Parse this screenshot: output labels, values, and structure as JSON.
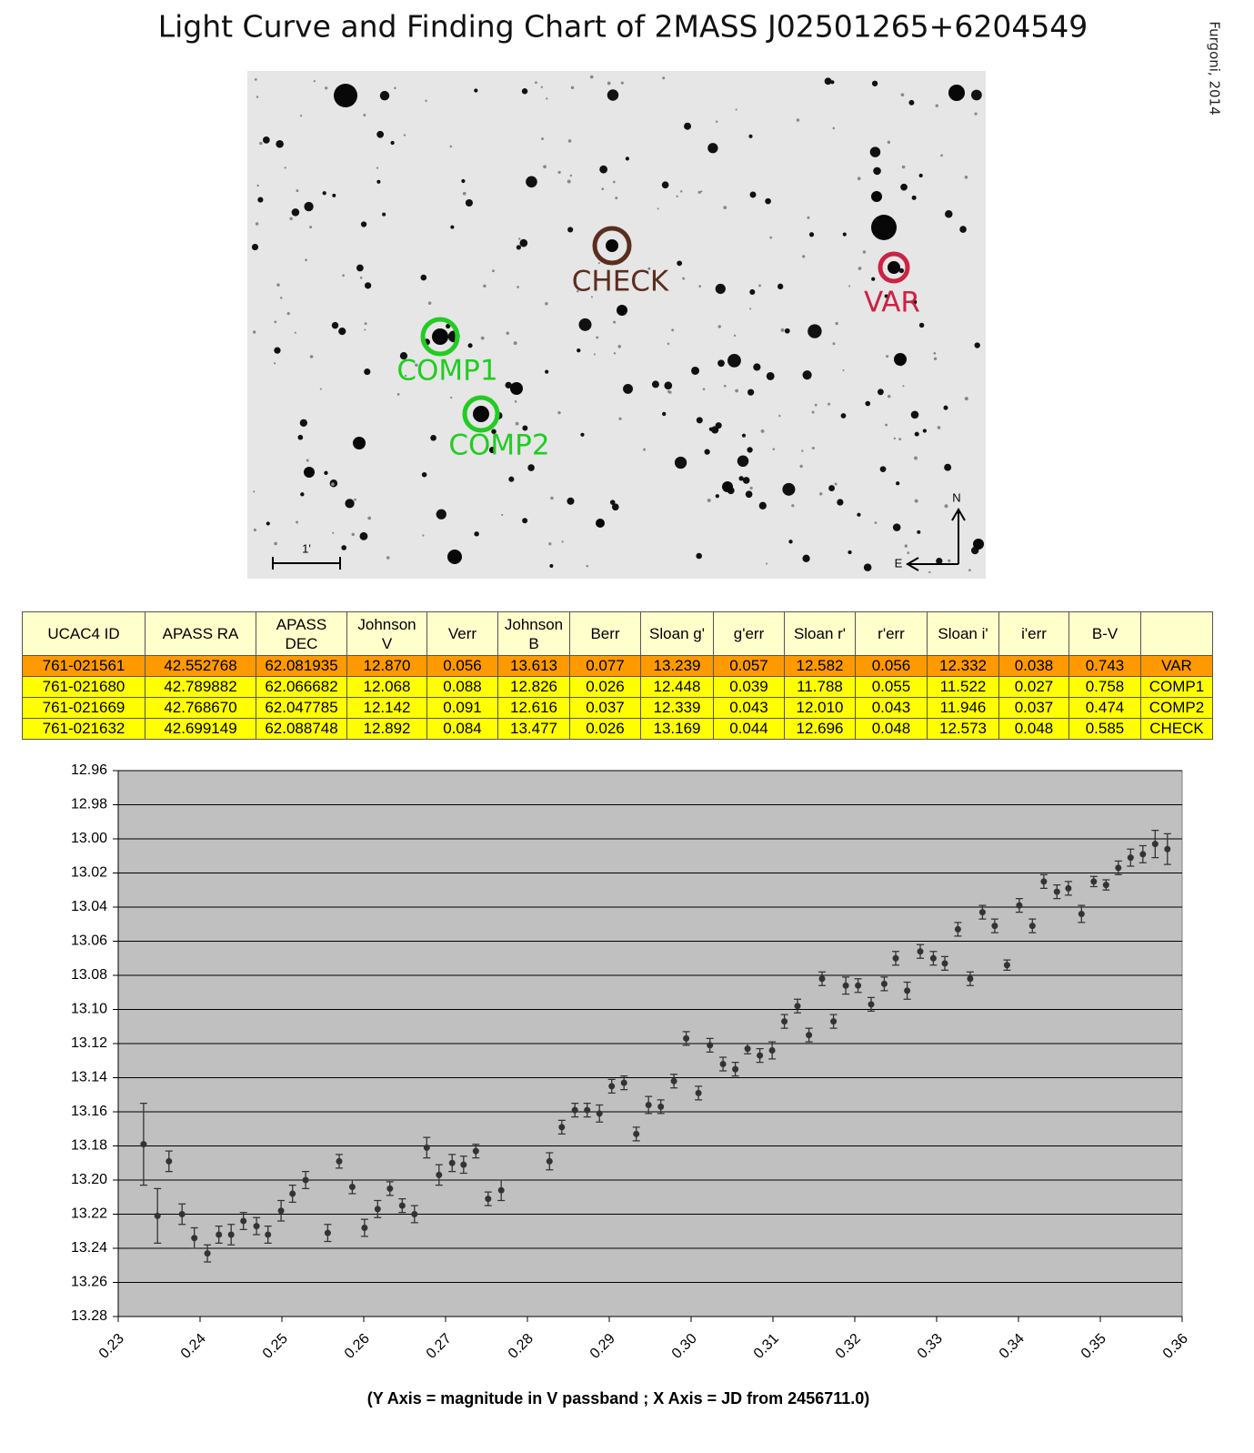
{
  "title": "Light Curve and Finding Chart of  2MASS J02501265+6204549",
  "credit": "Furgoni, 2014",
  "finder": {
    "labels": [
      "CHECK",
      "VAR",
      "COMP1",
      "COMP2"
    ],
    "scale": "1'",
    "north": "N",
    "east": "E"
  },
  "table": {
    "header": [
      "UCAC4 ID",
      "APASS RA",
      "APASS DEC",
      "Johnson V",
      "Verr",
      "Johnson B",
      "Berr",
      "Sloan g'",
      "g'err",
      "Sloan r'",
      "r'err",
      "Sloan i'",
      "i'err",
      "B-V"
    ],
    "rows": [
      [
        "761-021561",
        "42.552768",
        "62.081935",
        "12.870",
        "0.056",
        "13.613",
        "0.077",
        "13.239",
        "0.057",
        "12.582",
        "0.056",
        "12.332",
        "0.038",
        "0.743",
        "VAR"
      ],
      [
        "761-021680",
        "42.789882",
        "62.066682",
        "12.068",
        "0.088",
        "12.826",
        "0.026",
        "12.448",
        "0.039",
        "11.788",
        "0.055",
        "11.522",
        "0.027",
        "0.758",
        "COMP1"
      ],
      [
        "761-021669",
        "42.768670",
        "62.047785",
        "12.142",
        "0.091",
        "12.616",
        "0.037",
        "12.339",
        "0.043",
        "12.010",
        "0.043",
        "11.946",
        "0.037",
        "0.474",
        "COMP2"
      ],
      [
        "761-021632",
        "42.699149",
        "62.088748",
        "12.892",
        "0.084",
        "13.477",
        "0.026",
        "13.169",
        "0.044",
        "12.696",
        "0.048",
        "12.573",
        "0.048",
        "0.585",
        "CHECK"
      ]
    ]
  },
  "chart_data": {
    "type": "scatter",
    "caption": "(Y Axis = magnitude in V passband ; X Axis = JD from 2456711.0)",
    "color": "#333333",
    "grid": true,
    "x": [
      0.2331,
      0.2348,
      0.2362,
      0.2378,
      0.2393,
      0.2409,
      0.2423,
      0.2438,
      0.2453,
      0.2469,
      0.2483,
      0.2499,
      0.2513,
      0.2529,
      0.2556,
      0.257,
      0.2586,
      0.2601,
      0.2617,
      0.2632,
      0.2647,
      0.2662,
      0.2677,
      0.2692,
      0.2708,
      0.2722,
      0.2737,
      0.2752,
      0.2768,
      0.2827,
      0.2842,
      0.2858,
      0.2873,
      0.2888,
      0.2903,
      0.2918,
      0.2933,
      0.2948,
      0.2963,
      0.2979,
      0.2994,
      0.3009,
      0.3023,
      0.3039,
      0.3054,
      0.3069,
      0.3084,
      0.3099,
      0.3114,
      0.313,
      0.3144,
      0.316,
      0.3174,
      0.3189,
      0.3204,
      0.322,
      0.3236,
      0.325,
      0.3264,
      0.328,
      0.3296,
      0.331,
      0.3326,
      0.3341,
      0.3356,
      0.3371,
      0.3386,
      0.3401,
      0.3417,
      0.3431,
      0.3447,
      0.3461,
      0.3477,
      0.3492,
      0.3507,
      0.3522,
      0.3537,
      0.3552,
      0.3567,
      0.3582
    ],
    "values": [
      13.179,
      13.221,
      13.189,
      13.22,
      13.234,
      13.243,
      13.232,
      13.232,
      13.224,
      13.227,
      13.232,
      13.218,
      13.208,
      13.2,
      13.231,
      13.189,
      13.204,
      13.228,
      13.217,
      13.205,
      13.215,
      13.22,
      13.181,
      13.197,
      13.19,
      13.191,
      13.183,
      13.211,
      13.206,
      13.189,
      13.169,
      13.159,
      13.159,
      13.161,
      13.145,
      13.143,
      13.173,
      13.156,
      13.157,
      13.142,
      13.117,
      13.149,
      13.121,
      13.132,
      13.135,
      13.123,
      13.127,
      13.124,
      13.107,
      13.098,
      13.115,
      13.082,
      13.107,
      13.086,
      13.086,
      13.097,
      13.085,
      13.07,
      13.089,
      13.066,
      13.07,
      13.073,
      13.053,
      13.082,
      13.043,
      13.051,
      13.074,
      13.039,
      13.051,
      13.025,
      13.031,
      13.029,
      13.044,
      13.025,
      13.027,
      13.017,
      13.011,
      13.009,
      13.003,
      13.006
    ],
    "errors": [
      0.024,
      0.016,
      0.006,
      0.006,
      0.006,
      0.005,
      0.005,
      0.006,
      0.005,
      0.005,
      0.005,
      0.006,
      0.005,
      0.005,
      0.005,
      0.004,
      0.004,
      0.005,
      0.005,
      0.004,
      0.004,
      0.005,
      0.006,
      0.006,
      0.005,
      0.005,
      0.004,
      0.004,
      0.006,
      0.005,
      0.004,
      0.004,
      0.004,
      0.005,
      0.004,
      0.004,
      0.004,
      0.005,
      0.004,
      0.004,
      0.004,
      0.004,
      0.004,
      0.004,
      0.004,
      0.003,
      0.004,
      0.005,
      0.004,
      0.004,
      0.004,
      0.004,
      0.004,
      0.005,
      0.004,
      0.004,
      0.004,
      0.004,
      0.005,
      0.004,
      0.004,
      0.004,
      0.004,
      0.004,
      0.004,
      0.004,
      0.003,
      0.004,
      0.004,
      0.004,
      0.004,
      0.004,
      0.005,
      0.003,
      0.003,
      0.004,
      0.005,
      0.005,
      0.008,
      0.009
    ],
    "xlim": [
      0.23,
      0.36
    ],
    "xticks": [
      0.23,
      0.24,
      0.25,
      0.26,
      0.27,
      0.28,
      0.29,
      {
        "value": 0.3,
        "label": "0.30"
      },
      0.31,
      0.32,
      0.33,
      0.34,
      0.35,
      0.36
    ],
    "ylim": [
      13.28,
      12.96
    ],
    "yticks": [
      12.96,
      12.98,
      {
        "value": 13,
        "label": "13.00"
      },
      13.02,
      13.04,
      13.06,
      13.08,
      {
        "value": 13.1,
        "label": "13.10"
      },
      13.12,
      13.14,
      13.16,
      13.18,
      {
        "value": 13.2,
        "label": "13.20"
      },
      13.22,
      13.24,
      13.26,
      13.28
    ]
  }
}
